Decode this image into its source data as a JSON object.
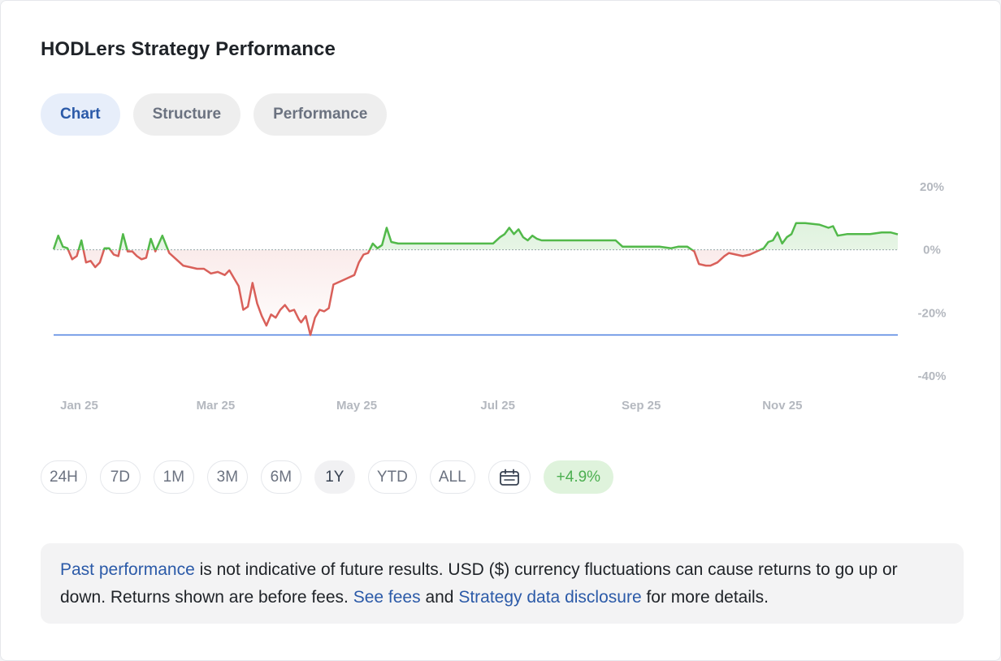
{
  "title": "HODLers Strategy Performance",
  "tabs": [
    {
      "label": "Chart",
      "active": true
    },
    {
      "label": "Structure",
      "active": false
    },
    {
      "label": "Performance",
      "active": false
    }
  ],
  "ranges": [
    {
      "label": "24H",
      "active": false
    },
    {
      "label": "7D",
      "active": false
    },
    {
      "label": "1M",
      "active": false
    },
    {
      "label": "3M",
      "active": false
    },
    {
      "label": "6M",
      "active": false
    },
    {
      "label": "1Y",
      "active": true
    },
    {
      "label": "YTD",
      "active": false
    },
    {
      "label": "ALL",
      "active": false
    }
  ],
  "calendar_icon": "calendar-icon",
  "return_badge": "+4.9%",
  "disclaimer": {
    "link1": "Past performance",
    "text1": " is not indicative of future results. USD ($) currency fluctuations can cause returns to go up or down. Returns shown are before fees. ",
    "link2": "See fees",
    "text2": " and ",
    "link3": "Strategy data disclosure",
    "text3": " for more details."
  },
  "colors": {
    "positive": "#52b94a",
    "negative": "#d9605a",
    "max_drawdown_line": "#4a7fe0",
    "link": "#2b5aa8"
  },
  "chart_data": {
    "type": "line",
    "title": "",
    "xlabel": "",
    "ylabel": "",
    "x_ticks": [
      "Jan 25",
      "Mar 25",
      "May 25",
      "Jul 25",
      "Sep 25",
      "Nov 25"
    ],
    "y_ticks": [
      "20%",
      "0%",
      "-20%",
      "-40%"
    ],
    "ylim": [
      -40,
      20
    ],
    "baseline": 0,
    "reference_line": -27,
    "grid": false,
    "series": [
      {
        "x": [
          "2024-12-22",
          "2024-12-24",
          "2024-12-26",
          "2024-12-28",
          "2024-12-30",
          "2025-01-01",
          "2025-01-03",
          "2025-01-05",
          "2025-01-07",
          "2025-01-09",
          "2025-01-11",
          "2025-01-13",
          "2025-01-15",
          "2025-01-17",
          "2025-01-19",
          "2025-01-21",
          "2025-01-23",
          "2025-01-25",
          "2025-01-27",
          "2025-01-29",
          "2025-01-31",
          "2025-02-02",
          "2025-02-04",
          "2025-02-07",
          "2025-02-10",
          "2025-02-13",
          "2025-02-16",
          "2025-02-19",
          "2025-02-22",
          "2025-02-25",
          "2025-02-28",
          "2025-03-03",
          "2025-03-06",
          "2025-03-08",
          "2025-03-10",
          "2025-03-12",
          "2025-03-14",
          "2025-03-16",
          "2025-03-18",
          "2025-03-20",
          "2025-03-22",
          "2025-03-24",
          "2025-03-26",
          "2025-03-28",
          "2025-03-30",
          "2025-04-01",
          "2025-04-03",
          "2025-04-05",
          "2025-04-07",
          "2025-04-08",
          "2025-04-10",
          "2025-04-12",
          "2025-04-14",
          "2025-04-16",
          "2025-04-18",
          "2025-04-20",
          "2025-04-22",
          "2025-04-25",
          "2025-04-28",
          "2025-05-01",
          "2025-05-03",
          "2025-05-05",
          "2025-05-07",
          "2025-05-09",
          "2025-05-11",
          "2025-05-13",
          "2025-05-15",
          "2025-05-17",
          "2025-05-20",
          "2025-05-22",
          "2025-05-24",
          "2025-06-01",
          "2025-06-10",
          "2025-06-20",
          "2025-06-30",
          "2025-07-03",
          "2025-07-05",
          "2025-07-07",
          "2025-07-09",
          "2025-07-11",
          "2025-07-13",
          "2025-07-15",
          "2025-07-17",
          "2025-07-19",
          "2025-07-21",
          "2025-07-25",
          "2025-08-01",
          "2025-08-10",
          "2025-08-18",
          "2025-08-22",
          "2025-08-25",
          "2025-08-28",
          "2025-09-01",
          "2025-09-05",
          "2025-09-10",
          "2025-09-15",
          "2025-09-18",
          "2025-09-22",
          "2025-09-25",
          "2025-09-27",
          "2025-09-30",
          "2025-10-02",
          "2025-10-05",
          "2025-10-08",
          "2025-10-10",
          "2025-10-13",
          "2025-10-16",
          "2025-10-19",
          "2025-10-22",
          "2025-10-25",
          "2025-10-27",
          "2025-10-29",
          "2025-10-31",
          "2025-11-02",
          "2025-11-04",
          "2025-11-06",
          "2025-11-08",
          "2025-11-12",
          "2025-11-18",
          "2025-11-20",
          "2025-11-22",
          "2025-11-24",
          "2025-11-26",
          "2025-11-30",
          "2025-12-05",
          "2025-12-10",
          "2025-12-15",
          "2025-12-19",
          "2025-12-22"
        ],
        "values": [
          0.2,
          4.5,
          1.0,
          0.5,
          -3.0,
          -2.0,
          3.0,
          -4.0,
          -3.5,
          -5.5,
          -4.0,
          0.5,
          0.5,
          -1.5,
          -2.0,
          5.0,
          -0.5,
          -0.5,
          -2.0,
          -3.0,
          -2.5,
          3.5,
          -0.5,
          4.5,
          -1.0,
          -3.0,
          -5.0,
          -5.5,
          -6.0,
          -6.0,
          -7.5,
          -7.0,
          -8.0,
          -6.5,
          -9.0,
          -11.5,
          -19.0,
          -18.0,
          -10.5,
          -17.0,
          -21.0,
          -24.0,
          -20.5,
          -21.5,
          -19.0,
          -17.5,
          -19.5,
          -19.0,
          -22.0,
          -23.0,
          -21.0,
          -27.0,
          -21.5,
          -19.0,
          -19.5,
          -18.5,
          -11.0,
          -10.0,
          -9.0,
          -8.0,
          -4.0,
          -1.5,
          -1.0,
          2.0,
          0.5,
          1.5,
          7.0,
          2.5,
          2.0,
          2.0,
          2.0,
          2.0,
          2.0,
          2.0,
          2.0,
          4.0,
          5.0,
          7.0,
          5.0,
          6.5,
          4.0,
          3.0,
          4.5,
          3.5,
          3.0,
          3.0,
          3.0,
          3.0,
          3.0,
          3.0,
          1.0,
          1.0,
          1.0,
          1.0,
          1.0,
          0.5,
          1.0,
          1.0,
          -0.5,
          -4.5,
          -5.0,
          -5.0,
          -4.0,
          -2.0,
          -1.0,
          -1.5,
          -2.0,
          -1.5,
          -0.5,
          0.5,
          2.5,
          3.0,
          5.5,
          2.0,
          4.0,
          5.0,
          8.5,
          8.5,
          8.0,
          7.5,
          7.0,
          7.5,
          4.5,
          5.0,
          5.0,
          5.0,
          5.5,
          5.5,
          4.9
        ]
      }
    ]
  }
}
